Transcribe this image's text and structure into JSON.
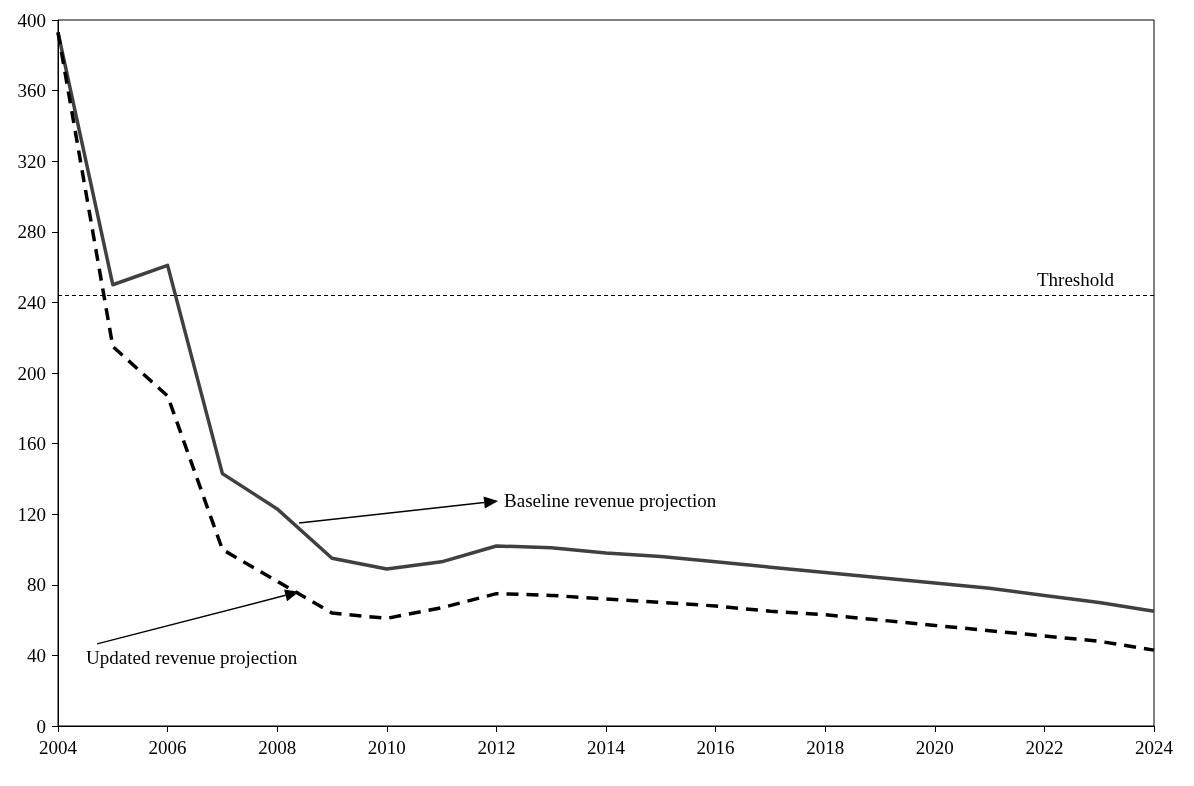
{
  "chart_data": {
    "type": "line",
    "x": [
      2004,
      2005,
      2006,
      2007,
      2008,
      2009,
      2010,
      2011,
      2012,
      2013,
      2014,
      2015,
      2016,
      2017,
      2018,
      2019,
      2020,
      2021,
      2022,
      2023,
      2024
    ],
    "series": [
      {
        "color": "#404040",
        "line_style": "solid",
        "values": [
          393,
          250,
          261,
          143,
          123,
          95,
          89,
          93,
          102,
          101,
          98,
          96,
          93,
          90,
          87,
          84,
          81,
          78,
          74,
          70,
          65
        ]
      },
      {
        "color": "#000000",
        "line_style": "dashed",
        "values": [
          393,
          215,
          187,
          100,
          82,
          64,
          61,
          67,
          75,
          74,
          72,
          70,
          68,
          65,
          63,
          60,
          57,
          54,
          51,
          48,
          43
        ]
      }
    ],
    "xlim": [
      2004,
      2024
    ],
    "xticks": [
      2004,
      2006,
      2008,
      2010,
      2012,
      2014,
      2016,
      2018,
      2020,
      2022,
      2024
    ],
    "ylim": [
      0,
      400
    ],
    "yticks": [
      0,
      40,
      80,
      120,
      160,
      200,
      240,
      280,
      320,
      360,
      400
    ],
    "ref_lines": [
      {
        "axis": "y",
        "value": 244,
        "label": "Threshold",
        "color": "#000000",
        "line_style": "dashed"
      }
    ],
    "annotations": [
      {
        "text": "Baseline revenue projection",
        "x": 2008.4,
        "y": 115
      },
      {
        "text": "Updated revenue projection",
        "x": 2008.4,
        "y": 76
      }
    ],
    "grid": false,
    "marker": "none"
  }
}
